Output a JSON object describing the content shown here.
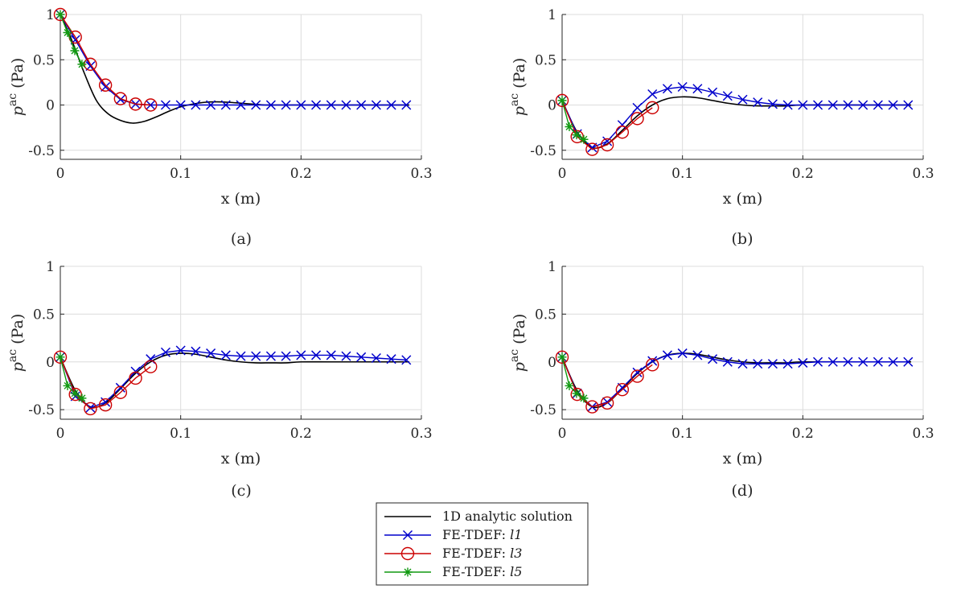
{
  "chart_data": [
    {
      "type": "line",
      "caption": "(a)",
      "xlabel": "x (m)",
      "ylabel_base": "p",
      "ylabel_sup": "ac",
      "ylabel_unit": "(Pa)",
      "xlim": [
        0,
        0.3
      ],
      "ylim": [
        -0.6,
        1
      ],
      "xticks": [
        "0",
        "0.1",
        "0.2",
        "0.3"
      ],
      "yticks": [
        "-0.5",
        "0",
        "0.5",
        "1"
      ],
      "series": [
        {
          "name": "1D analytic solution",
          "x": [
            0,
            0.01,
            0.02,
            0.03,
            0.04,
            0.05,
            0.06,
            0.07,
            0.08,
            0.09,
            0.1,
            0.11,
            0.12,
            0.13,
            0.14,
            0.15,
            0.16,
            0.17,
            0.18,
            0.2,
            0.25,
            0.29
          ],
          "values": [
            1.0,
            0.7,
            0.35,
            0.05,
            -0.1,
            -0.17,
            -0.2,
            -0.18,
            -0.13,
            -0.07,
            -0.02,
            0.01,
            0.03,
            0.035,
            0.03,
            0.02,
            0.01,
            0.0,
            0.0,
            0.0,
            0.0,
            0.0
          ]
        },
        {
          "name": "FE-TDEF: l1",
          "x": [
            0,
            0.0125,
            0.025,
            0.0375,
            0.05,
            0.0625,
            0.075,
            0.0875,
            0.1,
            0.1125,
            0.125,
            0.1375,
            0.15,
            0.1625,
            0.175,
            0.1875,
            0.2,
            0.2125,
            0.225,
            0.2375,
            0.25,
            0.2625,
            0.275,
            0.2875
          ],
          "values": [
            1.0,
            0.72,
            0.43,
            0.2,
            0.06,
            0.01,
            0.0,
            0.0,
            0.0,
            0.0,
            0.0,
            0.0,
            0.0,
            0.0,
            0.0,
            0.0,
            0.0,
            0.0,
            0.0,
            0.0,
            0.0,
            0.0,
            0.0,
            0.0
          ]
        },
        {
          "name": "FE-TDEF: l3",
          "x": [
            0,
            0.0125,
            0.025,
            0.0375,
            0.05,
            0.0625,
            0.075
          ],
          "values": [
            1.0,
            0.75,
            0.45,
            0.22,
            0.07,
            0.01,
            0.0
          ]
        },
        {
          "name": "FE-TDEF: l5",
          "x": [
            0,
            0.006,
            0.012,
            0.018
          ],
          "values": [
            1.0,
            0.8,
            0.6,
            0.45
          ]
        }
      ]
    },
    {
      "type": "line",
      "caption": "(b)",
      "xlabel": "x (m)",
      "ylabel_base": "p",
      "ylabel_sup": "ac",
      "ylabel_unit": "(Pa)",
      "xlim": [
        0,
        0.3
      ],
      "ylim": [
        -0.6,
        1
      ],
      "xticks": [
        "0",
        "0.1",
        "0.2",
        "0.3"
      ],
      "yticks": [
        "-0.5",
        "0",
        "0.5",
        "1"
      ],
      "series": [
        {
          "name": "1D analytic solution",
          "x": [
            0,
            0.0125,
            0.025,
            0.0375,
            0.05,
            0.0625,
            0.075,
            0.0875,
            0.1,
            0.1125,
            0.125,
            0.1375,
            0.15,
            0.1625,
            0.175,
            0.1875,
            0.2,
            0.25,
            0.29
          ],
          "values": [
            0.05,
            -0.3,
            -0.47,
            -0.43,
            -0.28,
            -0.12,
            0.0,
            0.07,
            0.09,
            0.08,
            0.05,
            0.02,
            0.0,
            -0.01,
            -0.01,
            -0.01,
            0.0,
            0.0,
            0.0
          ]
        },
        {
          "name": "FE-TDEF: l1",
          "x": [
            0,
            0.0125,
            0.025,
            0.0375,
            0.05,
            0.0625,
            0.075,
            0.0875,
            0.1,
            0.1125,
            0.125,
            0.1375,
            0.15,
            0.1625,
            0.175,
            0.1875,
            0.2,
            0.2125,
            0.225,
            0.2375,
            0.25,
            0.2625,
            0.275,
            0.2875
          ],
          "values": [
            0.05,
            -0.32,
            -0.47,
            -0.4,
            -0.22,
            -0.03,
            0.12,
            0.18,
            0.2,
            0.18,
            0.14,
            0.1,
            0.06,
            0.03,
            0.01,
            0.0,
            0.0,
            0.0,
            0.0,
            0.0,
            0.0,
            0.0,
            0.0,
            0.0
          ]
        },
        {
          "name": "FE-TDEF: l3",
          "x": [
            0,
            0.0125,
            0.025,
            0.0375,
            0.05,
            0.0625,
            0.075
          ],
          "values": [
            0.05,
            -0.35,
            -0.49,
            -0.44,
            -0.3,
            -0.15,
            -0.03
          ]
        },
        {
          "name": "FE-TDEF: l5",
          "x": [
            0,
            0.006,
            0.012,
            0.018
          ],
          "values": [
            0.05,
            -0.24,
            -0.33,
            -0.38
          ]
        }
      ]
    },
    {
      "type": "line",
      "caption": "(c)",
      "xlabel": "x (m)",
      "ylabel_base": "p",
      "ylabel_sup": "ac",
      "ylabel_unit": "(Pa)",
      "xlim": [
        0,
        0.3
      ],
      "ylim": [
        -0.6,
        1
      ],
      "xticks": [
        "0",
        "0.1",
        "0.2",
        "0.3"
      ],
      "yticks": [
        "-0.5",
        "0",
        "0.5",
        "1"
      ],
      "series": [
        {
          "name": "1D analytic solution",
          "x": [
            0,
            0.0125,
            0.025,
            0.0375,
            0.05,
            0.0625,
            0.075,
            0.0875,
            0.1,
            0.1125,
            0.125,
            0.1375,
            0.15,
            0.1625,
            0.175,
            0.1875,
            0.2,
            0.225,
            0.25,
            0.29
          ],
          "values": [
            0.05,
            -0.3,
            -0.47,
            -0.43,
            -0.28,
            -0.12,
            0.0,
            0.07,
            0.09,
            0.08,
            0.05,
            0.02,
            0.0,
            -0.01,
            -0.01,
            -0.01,
            0.0,
            0.0,
            0.0,
            0.0
          ]
        },
        {
          "name": "FE-TDEF: l1",
          "x": [
            0,
            0.0125,
            0.025,
            0.0375,
            0.05,
            0.0625,
            0.075,
            0.0875,
            0.1,
            0.1125,
            0.125,
            0.1375,
            0.15,
            0.1625,
            0.175,
            0.1875,
            0.2,
            0.2125,
            0.225,
            0.2375,
            0.25,
            0.2625,
            0.275,
            0.2875
          ],
          "values": [
            0.05,
            -0.36,
            -0.48,
            -0.42,
            -0.27,
            -0.1,
            0.03,
            0.1,
            0.12,
            0.11,
            0.09,
            0.07,
            0.06,
            0.06,
            0.06,
            0.06,
            0.07,
            0.07,
            0.07,
            0.06,
            0.05,
            0.04,
            0.03,
            0.02
          ]
        },
        {
          "name": "FE-TDEF: l3",
          "x": [
            0,
            0.0125,
            0.025,
            0.0375,
            0.05,
            0.0625,
            0.075
          ],
          "values": [
            0.05,
            -0.34,
            -0.49,
            -0.45,
            -0.32,
            -0.17,
            -0.05
          ]
        },
        {
          "name": "FE-TDEF: l5",
          "x": [
            0,
            0.006,
            0.012,
            0.018
          ],
          "values": [
            0.05,
            -0.25,
            -0.33,
            -0.38
          ]
        }
      ]
    },
    {
      "type": "line",
      "caption": "(d)",
      "xlabel": "x (m)",
      "ylabel_base": "p",
      "ylabel_sup": "ac",
      "ylabel_unit": "(Pa)",
      "xlim": [
        0,
        0.3
      ],
      "ylim": [
        -0.6,
        1
      ],
      "xticks": [
        "0",
        "0.1",
        "0.2",
        "0.3"
      ],
      "yticks": [
        "-0.5",
        "0",
        "0.5",
        "1"
      ],
      "series": [
        {
          "name": "1D analytic solution",
          "x": [
            0,
            0.0125,
            0.025,
            0.0375,
            0.05,
            0.0625,
            0.075,
            0.0875,
            0.1,
            0.1125,
            0.125,
            0.1375,
            0.15,
            0.1625,
            0.175,
            0.1875,
            0.2,
            0.25,
            0.29
          ],
          "values": [
            0.05,
            -0.3,
            -0.47,
            -0.43,
            -0.28,
            -0.12,
            0.0,
            0.07,
            0.09,
            0.08,
            0.05,
            0.02,
            0.0,
            -0.01,
            -0.01,
            -0.01,
            0.0,
            0.0,
            0.0
          ]
        },
        {
          "name": "FE-TDEF: l1",
          "x": [
            0,
            0.0125,
            0.025,
            0.0375,
            0.05,
            0.0625,
            0.075,
            0.0875,
            0.1,
            0.1125,
            0.125,
            0.1375,
            0.15,
            0.1625,
            0.175,
            0.1875,
            0.2,
            0.2125,
            0.225,
            0.2375,
            0.25,
            0.2625,
            0.275,
            0.2875
          ],
          "values": [
            0.05,
            -0.33,
            -0.47,
            -0.42,
            -0.27,
            -0.11,
            0.01,
            0.07,
            0.09,
            0.07,
            0.03,
            0.0,
            -0.02,
            -0.02,
            -0.02,
            -0.02,
            -0.01,
            0.0,
            0.0,
            0.0,
            0.0,
            0.0,
            0.0,
            0.0
          ]
        },
        {
          "name": "FE-TDEF: l3",
          "x": [
            0,
            0.0125,
            0.025,
            0.0375,
            0.05,
            0.0625,
            0.075
          ],
          "values": [
            0.05,
            -0.34,
            -0.47,
            -0.43,
            -0.29,
            -0.15,
            -0.03
          ]
        },
        {
          "name": "FE-TDEF: l5",
          "x": [
            0,
            0.006,
            0.012,
            0.018
          ],
          "values": [
            0.05,
            -0.25,
            -0.33,
            -0.38
          ]
        }
      ]
    }
  ],
  "legend": {
    "entries": [
      {
        "label": "1D analytic solution",
        "label_plain": "",
        "label_italic": ""
      },
      {
        "label": "",
        "label_plain": "FE-TDEF: ",
        "label_italic": "l1"
      },
      {
        "label": "",
        "label_plain": "FE-TDEF: ",
        "label_italic": "l3"
      },
      {
        "label": "",
        "label_plain": "FE-TDEF: ",
        "label_italic": "l5"
      }
    ]
  },
  "styles": {
    "analytic_color": "#000000",
    "l1_color": "#0000cc",
    "l3_color": "#cc0000",
    "l5_color": "#119911",
    "axis_color": "#262626",
    "grid_color": "#dcdcdc"
  }
}
